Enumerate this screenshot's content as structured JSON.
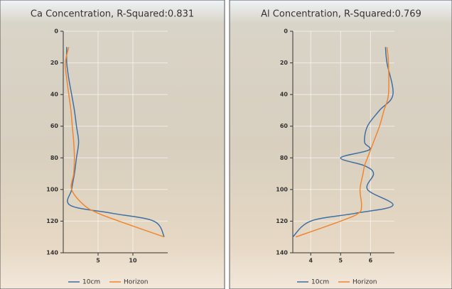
{
  "chart_data": [
    {
      "type": "line",
      "title": "Ca Concentration, R-Squared:0.831",
      "y": [
        10,
        20,
        30,
        40,
        50,
        60,
        70,
        80,
        90,
        100,
        110,
        115,
        120,
        130
      ],
      "ylim": [
        0,
        140
      ],
      "yticks": [
        0,
        20,
        40,
        60,
        80,
        100,
        120,
        140
      ],
      "y_inverted": true,
      "xlim": [
        0,
        15
      ],
      "xticks": [
        5,
        10
      ],
      "grid": true,
      "series": [
        {
          "name": "10cm",
          "color": "#3f6fa3",
          "values": [
            0.5,
            0.5,
            0.8,
            1.2,
            1.6,
            1.9,
            2.2,
            1.9,
            1.6,
            1.2,
            1.0,
            7,
            13,
            14.5
          ]
        },
        {
          "name": "Horizon",
          "color": "#f0862e",
          "values": [
            0.8,
            0.3,
            0.5,
            0.8,
            1.1,
            1.3,
            1.5,
            1.6,
            1.5,
            1.2,
            3,
            5,
            8,
            14.5
          ]
        }
      ]
    },
    {
      "type": "line",
      "title": "Al Concentration, R-Squared:0.769",
      "y": [
        10,
        20,
        40,
        50,
        60,
        70,
        75,
        80,
        85,
        90,
        100,
        110,
        115,
        120,
        130
      ],
      "ylim": [
        0,
        140
      ],
      "yticks": [
        0,
        20,
        40,
        60,
        80,
        100,
        120,
        140
      ],
      "y_inverted": true,
      "xlim": [
        3.4,
        6.8
      ],
      "xticks": [
        4,
        5,
        6
      ],
      "grid": true,
      "series": [
        {
          "name": "10cm",
          "color": "#3f6fa3",
          "values": [
            6.5,
            6.55,
            6.75,
            6.3,
            5.9,
            5.8,
            5.95,
            5.0,
            5.8,
            6.1,
            5.9,
            6.75,
            5.5,
            4.0,
            3.4
          ]
        },
        {
          "name": "Horizon",
          "color": "#f0862e",
          "values": [
            6.55,
            6.6,
            6.6,
            6.45,
            6.3,
            6.1,
            6.0,
            5.9,
            5.8,
            5.75,
            5.65,
            5.7,
            5.6,
            5.0,
            3.5
          ]
        }
      ]
    }
  ]
}
